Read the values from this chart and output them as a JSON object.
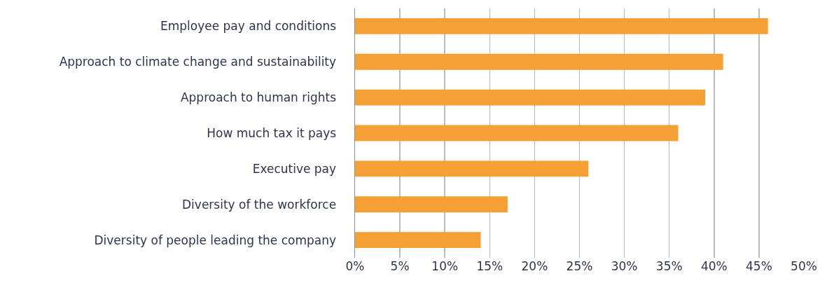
{
  "chart_data": {
    "type": "bar",
    "orientation": "horizontal",
    "categories": [
      "Employee pay and conditions",
      "Approach to climate change and sustainability",
      "Approach to human rights",
      "How much tax it pays",
      "Executive pay",
      "Diversity of the workforce",
      "Diversity of people leading the company"
    ],
    "values": [
      46,
      41,
      39,
      36,
      26,
      17,
      14
    ],
    "color": "#f4a034",
    "xlim": [
      0,
      50
    ],
    "xticks": [
      {
        "value": 0,
        "label": "0%"
      },
      {
        "value": 5,
        "label": "5%"
      },
      {
        "value": 10,
        "label": "10%"
      },
      {
        "value": 15,
        "label": "15%"
      },
      {
        "value": 20,
        "label": "20%"
      },
      {
        "value": 25,
        "label": "25%"
      },
      {
        "value": 30,
        "label": "30%"
      },
      {
        "value": 35,
        "label": "35%"
      },
      {
        "value": 40,
        "label": "40%"
      },
      {
        "value": 45,
        "label": "45%"
      },
      {
        "value": 50,
        "label": "50%"
      }
    ],
    "grid": "x"
  }
}
